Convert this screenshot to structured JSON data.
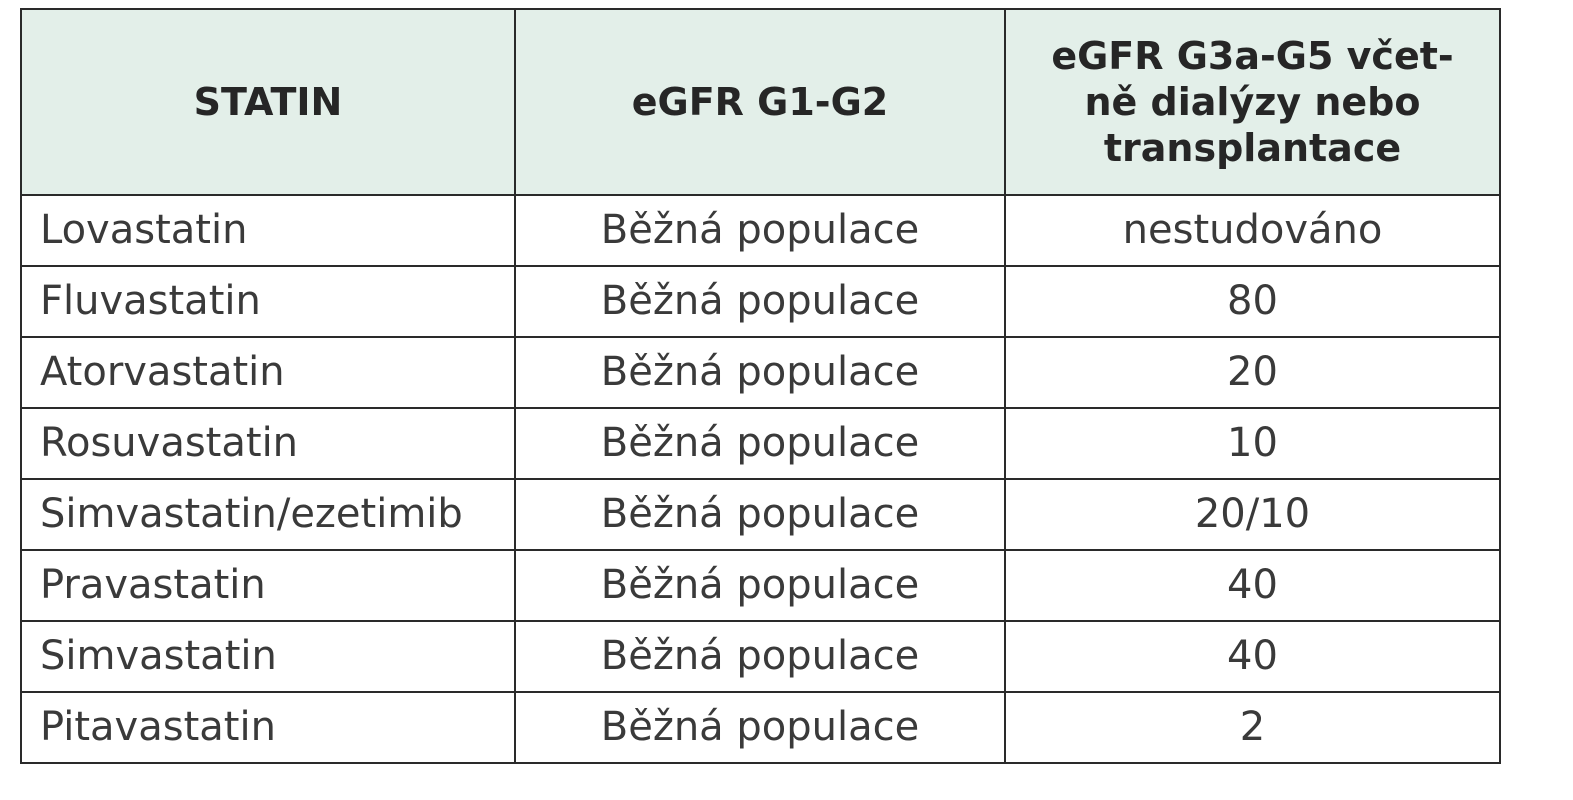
{
  "table": {
    "headers": {
      "statin": "STATIN",
      "egfr_g1_g2": "eGFR G1-G2",
      "egfr_g3_lines": [
        "eGFR G3a-G5 včet-",
        "ně dialýzy nebo",
        "transplantace"
      ]
    },
    "rows": [
      {
        "statin": "Lovastatin",
        "g1_g2": "Běžná populace",
        "g3_g5": "nestudováno"
      },
      {
        "statin": "Fluvastatin",
        "g1_g2": "Běžná populace",
        "g3_g5": "80"
      },
      {
        "statin": "Atorvastatin",
        "g1_g2": "Běžná populace",
        "g3_g5": "20"
      },
      {
        "statin": "Rosuvastatin",
        "g1_g2": "Běžná populace",
        "g3_g5": "10"
      },
      {
        "statin": "Simvastatin/ezetimib",
        "g1_g2": "Běžná populace",
        "g3_g5": "20/10"
      },
      {
        "statin": "Pravastatin",
        "g1_g2": "Běžná populace",
        "g3_g5": "40"
      },
      {
        "statin": "Simvastatin",
        "g1_g2": "Běžná populace",
        "g3_g5": "40"
      },
      {
        "statin": "Pitavastatin",
        "g1_g2": "Běžná populace",
        "g3_g5": "2"
      }
    ]
  },
  "colors": {
    "header_background": "#e3efe9",
    "border": "#2a2a2a",
    "text": "#3a3a3a"
  }
}
